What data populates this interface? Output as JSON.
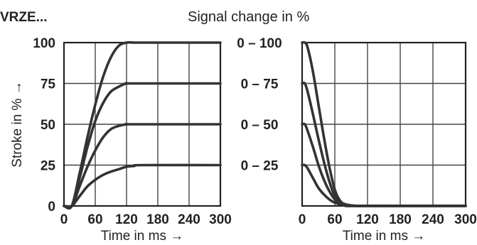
{
  "header": {
    "corner_label": "VRZE...",
    "title": "Signal change in %"
  },
  "chart_data": [
    {
      "type": "line",
      "title": "",
      "xlabel": "Time in ms →",
      "ylabel": "Stroke in % →",
      "xlim": [
        0,
        300
      ],
      "ylim": [
        0,
        100
      ],
      "x_ticks": [
        "0",
        "60",
        "120",
        "180",
        "240",
        "300"
      ],
      "y_ticks": [
        "0",
        "25",
        "50",
        "75",
        "100"
      ],
      "grid": true,
      "series": [
        {
          "x": [
            0,
            15,
            30,
            45,
            60,
            75,
            90,
            105,
            120,
            135,
            150,
            300
          ],
          "y": [
            0,
            0,
            20,
            42,
            62,
            79,
            91,
            98,
            100,
            100,
            100,
            100
          ]
        },
        {
          "x": [
            0,
            15,
            30,
            45,
            60,
            75,
            90,
            105,
            120,
            135,
            300
          ],
          "y": [
            0,
            0,
            17,
            36,
            52,
            63,
            70,
            73,
            75,
            75,
            75
          ]
        },
        {
          "x": [
            0,
            15,
            30,
            45,
            60,
            75,
            90,
            105,
            120,
            135,
            300
          ],
          "y": [
            0,
            0,
            12,
            24,
            34,
            42,
            47,
            49,
            50,
            50,
            50
          ]
        },
        {
          "x": [
            0,
            15,
            30,
            45,
            60,
            75,
            90,
            105,
            120,
            135,
            150,
            300
          ],
          "y": [
            0,
            0,
            6,
            12,
            16,
            19,
            21,
            22.5,
            24,
            24.5,
            25,
            25
          ]
        }
      ]
    },
    {
      "type": "line",
      "title": "",
      "xlabel": "Time in ms →",
      "ylabel": "",
      "xlim": [
        0,
        300
      ],
      "ylim": [
        0,
        100
      ],
      "x_ticks": [
        "0",
        "60",
        "120",
        "180",
        "240",
        "300"
      ],
      "grid": true,
      "series": [
        {
          "x": [
            0,
            5,
            10,
            20,
            30,
            40,
            50,
            60,
            70,
            80,
            100,
            120,
            300
          ],
          "y": [
            100,
            100,
            97,
            82,
            62,
            42,
            24,
            10,
            3,
            1,
            0,
            0,
            0
          ]
        },
        {
          "x": [
            0,
            5,
            10,
            20,
            30,
            40,
            50,
            60,
            70,
            80,
            100,
            120,
            300
          ],
          "y": [
            75,
            75,
            70,
            56,
            41,
            27,
            15,
            6,
            2,
            0.5,
            0,
            0,
            0
          ]
        },
        {
          "x": [
            0,
            5,
            10,
            20,
            30,
            40,
            50,
            60,
            70,
            80,
            100,
            120,
            300
          ],
          "y": [
            50,
            50,
            46,
            36,
            25,
            16,
            9,
            4,
            1,
            0.5,
            0,
            0,
            0
          ]
        },
        {
          "x": [
            0,
            5,
            10,
            20,
            30,
            40,
            50,
            60,
            70,
            80,
            100,
            120,
            300
          ],
          "y": [
            25,
            25,
            23,
            17,
            11,
            7,
            4,
            2,
            1,
            0,
            0,
            0,
            0
          ]
        }
      ]
    }
  ],
  "series_labels": [
    "0 – 100",
    "0 – 75",
    "0 – 50",
    "0 – 25"
  ]
}
